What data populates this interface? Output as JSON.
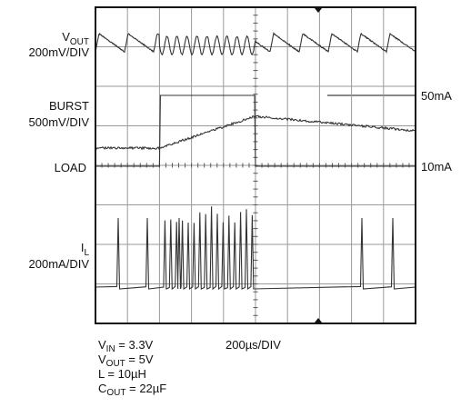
{
  "chart_data": {
    "type": "line",
    "title": "",
    "grid": true,
    "divisions": {
      "x": 10,
      "y": 8
    },
    "time_per_div": "200µs/DIV",
    "channels": [
      {
        "name": "V_OUT",
        "label_main": "V",
        "label_sub": "OUT",
        "scale": "200mV/DIV"
      },
      {
        "name": "BURST",
        "label_main": "BURST",
        "scale": "500mV/DIV"
      },
      {
        "name": "LOAD",
        "label_main": "LOAD",
        "scale": ""
      },
      {
        "name": "I_L",
        "label_main": "I",
        "label_sub": "L",
        "scale": "200mA/DIV"
      }
    ],
    "annotations": [
      {
        "text": "50mA"
      },
      {
        "text": "10mA"
      }
    ],
    "conditions": [
      {
        "main": "V",
        "sub": "IN",
        "rest": " = 3.3V"
      },
      {
        "main": "V",
        "sub": "OUT",
        "rest": " = 5V"
      },
      {
        "main": "L = 10µH",
        "sub": "",
        "rest": ""
      },
      {
        "main": "C",
        "sub": "OUT",
        "rest": " = 22µF"
      }
    ],
    "load_step": {
      "start_time_div": 2.0,
      "end_time_div": 5.0,
      "low": "10mA",
      "high": "50mA"
    }
  }
}
